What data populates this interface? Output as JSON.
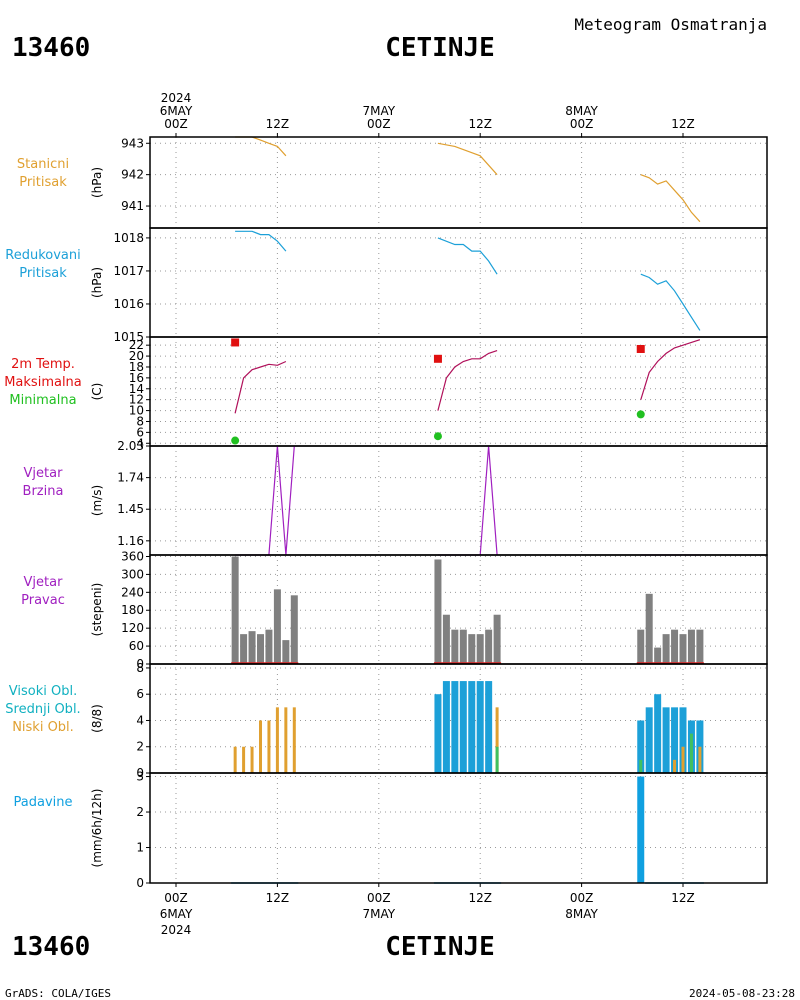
{
  "header": {
    "station_id": "13460",
    "station_name": "CETINJE",
    "title": "Meteogram Osmatranja"
  },
  "footer": {
    "credit": "GrADS: COLA/IGES",
    "timestamp": "2024-05-08-23:28"
  },
  "time_axis": {
    "top_labels": [
      {
        "lines": [
          "2024",
          "6MAY",
          "00Z"
        ]
      },
      {
        "lines": [
          "12Z"
        ]
      },
      {
        "lines": [
          "7MAY",
          "00Z"
        ]
      },
      {
        "lines": [
          "12Z"
        ]
      },
      {
        "lines": [
          "8MAY",
          "00Z"
        ]
      },
      {
        "lines": [
          "12Z"
        ]
      }
    ],
    "bottom_labels": [
      {
        "lines": [
          "00Z",
          "6MAY",
          "2024"
        ]
      },
      {
        "lines": [
          "12Z"
        ]
      },
      {
        "lines": [
          "00Z",
          "7MAY"
        ]
      },
      {
        "lines": [
          "12Z"
        ]
      },
      {
        "lines": [
          "00Z",
          "8MAY"
        ]
      },
      {
        "lines": [
          "12Z"
        ]
      }
    ]
  },
  "colors": {
    "station_pressure": "#e0a030",
    "reduced_pressure": "#1ca0d8",
    "temp": "#b0105a",
    "tmax": "#e01010",
    "tmin": "#20c020",
    "wind_speed": "#a020c0",
    "wind_dir_bar": "#808080",
    "wind_dir_base": "#e02020",
    "high_cloud": "#1ca0d8",
    "mid_cloud": "#40c060",
    "low_cloud": "#e0a030",
    "precip": "#10a0e0",
    "title_pressure": "#e0a030",
    "title_reduced": "#1ca0d8",
    "title_temp": "#e01010",
    "title_max": "#e01010",
    "title_min": "#20c020",
    "title_wind": "#a020c0",
    "title_cloud_high": "#10b0c0",
    "title_cloud_mid": "#10b0c0",
    "title_cloud_low": "#e0a030",
    "title_precip": "#10a0e0"
  },
  "chart_data": [
    {
      "type": "line",
      "panel": "station_pressure",
      "label_lines": [
        "Stanicni",
        "Pritisak"
      ],
      "unit": "(hPa)",
      "ylim": [
        940.3,
        943.2
      ],
      "yticks": [
        941,
        942,
        943
      ],
      "series": [
        {
          "segments": [
            [
              [
                7,
                943.2
              ],
              [
                9,
                943.2
              ],
              [
                10,
                943.1
              ],
              [
                11,
                943.0
              ],
              [
                12,
                942.9
              ],
              [
                13,
                942.6
              ]
            ],
            [
              [
                31,
                943.0
              ],
              [
                33,
                942.9
              ],
              [
                34,
                942.8
              ],
              [
                35,
                942.7
              ],
              [
                36,
                942.6
              ],
              [
                37,
                942.3
              ],
              [
                38,
                942.0
              ]
            ],
            [
              [
                55,
                942.0
              ],
              [
                56,
                941.9
              ],
              [
                57,
                941.7
              ],
              [
                58,
                941.8
              ],
              [
                59,
                941.5
              ],
              [
                60,
                941.2
              ],
              [
                61,
                940.8
              ],
              [
                62,
                940.5
              ]
            ]
          ]
        }
      ]
    },
    {
      "type": "line",
      "panel": "reduced_pressure",
      "label_lines": [
        "Redukovani",
        "Pritisak"
      ],
      "unit": "(hPa)",
      "ylim": [
        1015.0,
        1018.3
      ],
      "yticks": [
        1015,
        1016,
        1017,
        1018
      ],
      "series": [
        {
          "segments": [
            [
              [
                7,
                1018.2
              ],
              [
                9,
                1018.2
              ],
              [
                10,
                1018.1
              ],
              [
                11,
                1018.1
              ],
              [
                12,
                1017.9
              ],
              [
                13,
                1017.6
              ]
            ],
            [
              [
                31,
                1018.0
              ],
              [
                33,
                1017.8
              ],
              [
                34,
                1017.8
              ],
              [
                35,
                1017.6
              ],
              [
                36,
                1017.6
              ],
              [
                37,
                1017.3
              ],
              [
                38,
                1016.9
              ]
            ],
            [
              [
                55,
                1016.9
              ],
              [
                56,
                1016.8
              ],
              [
                57,
                1016.6
              ],
              [
                58,
                1016.7
              ],
              [
                59,
                1016.4
              ],
              [
                60,
                1016.0
              ],
              [
                61,
                1015.6
              ],
              [
                62,
                1015.2
              ]
            ]
          ]
        }
      ]
    },
    {
      "type": "line",
      "panel": "temperature",
      "label_lines": [
        "2m Temp.",
        "Maksimalna",
        "Minimalna"
      ],
      "unit": "(C)",
      "ylim": [
        3.5,
        23.5
      ],
      "yticks": [
        4,
        6,
        8,
        10,
        12,
        14,
        16,
        18,
        20,
        22
      ],
      "series": [
        {
          "segments": [
            [
              [
                7,
                9.5
              ],
              [
                8,
                16.0
              ],
              [
                9,
                17.5
              ],
              [
                10,
                18.0
              ],
              [
                11,
                18.5
              ],
              [
                12,
                18.3
              ],
              [
                13,
                19.0
              ]
            ],
            [
              [
                31,
                10.0
              ],
              [
                32,
                16.0
              ],
              [
                33,
                18.0
              ],
              [
                34,
                19.0
              ],
              [
                35,
                19.5
              ],
              [
                36,
                19.5
              ],
              [
                37,
                20.5
              ],
              [
                38,
                21.0
              ]
            ],
            [
              [
                55,
                12.0
              ],
              [
                56,
                17.0
              ],
              [
                57,
                19.0
              ],
              [
                58,
                20.5
              ],
              [
                59,
                21.5
              ],
              [
                60,
                22.0
              ],
              [
                61,
                22.5
              ],
              [
                62,
                23.0
              ]
            ]
          ]
        }
      ],
      "tmax": [
        [
          7,
          22.5
        ],
        [
          31,
          19.5
        ],
        [
          55,
          21.3
        ]
      ],
      "tmin": [
        [
          7,
          4.5
        ],
        [
          31,
          5.3
        ],
        [
          55,
          9.3
        ]
      ]
    },
    {
      "type": "line",
      "panel": "wind_speed",
      "label_lines": [
        "Vjetar",
        "Brzina"
      ],
      "unit": "(m/s)",
      "ylim": [
        1.03,
        2.03
      ],
      "yticks": [
        1.16,
        1.45,
        1.74,
        2.03
      ],
      "yticklabels": [
        "1.16",
        "1.45",
        "1.74",
        "2.03"
      ],
      "series": [
        {
          "segments": [
            [
              [
                7,
                1.03
              ],
              [
                11,
                1.03
              ],
              [
                12,
                2.03
              ],
              [
                13,
                1.03
              ],
              [
                14,
                2.03
              ]
            ],
            [
              [
                31,
                1.03
              ],
              [
                36,
                1.03
              ],
              [
                37,
                2.03
              ],
              [
                38,
                1.03
              ]
            ],
            [
              [
                55,
                1.03
              ],
              [
                62,
                1.03
              ]
            ]
          ]
        }
      ]
    },
    {
      "type": "bar",
      "panel": "wind_direction",
      "label_lines": [
        "Vjetar",
        "Pravac"
      ],
      "unit": "(stepeni)",
      "ylim": [
        0,
        365
      ],
      "yticks": [
        0,
        60,
        120,
        180,
        240,
        300,
        360
      ],
      "bars": [
        [
          7,
          360
        ],
        [
          8,
          100
        ],
        [
          9,
          110
        ],
        [
          10,
          100
        ],
        [
          11,
          115
        ],
        [
          12,
          250
        ],
        [
          13,
          80
        ],
        [
          14,
          230
        ],
        [
          31,
          350
        ],
        [
          32,
          165
        ],
        [
          33,
          115
        ],
        [
          34,
          115
        ],
        [
          35,
          100
        ],
        [
          36,
          100
        ],
        [
          37,
          115
        ],
        [
          38,
          165
        ],
        [
          55,
          115
        ],
        [
          56,
          235
        ],
        [
          57,
          55
        ],
        [
          58,
          100
        ],
        [
          59,
          115
        ],
        [
          60,
          100
        ],
        [
          61,
          115
        ],
        [
          62,
          115
        ]
      ]
    },
    {
      "type": "bar",
      "panel": "clouds",
      "label_lines": [
        "Visoki Obl.",
        "Srednji Obl.",
        "Niski Obl."
      ],
      "unit": "(8/8)",
      "ylim": [
        0,
        8.3
      ],
      "yticks": [
        0,
        2,
        4,
        6,
        8
      ],
      "high": [
        [
          31,
          6
        ],
        [
          32,
          7
        ],
        [
          33,
          7
        ],
        [
          34,
          7
        ],
        [
          35,
          7
        ],
        [
          36,
          7
        ],
        [
          37,
          7
        ],
        [
          55,
          4
        ],
        [
          56,
          5
        ],
        [
          57,
          6
        ],
        [
          58,
          5
        ],
        [
          59,
          5
        ],
        [
          60,
          5
        ],
        [
          61,
          4
        ],
        [
          62,
          4
        ]
      ],
      "mid": [
        [
          38,
          2
        ],
        [
          55,
          1
        ],
        [
          61,
          3
        ]
      ],
      "low": [
        [
          7,
          2
        ],
        [
          8,
          2
        ],
        [
          9,
          2
        ],
        [
          10,
          4
        ],
        [
          11,
          4
        ],
        [
          12,
          5
        ],
        [
          13,
          5
        ],
        [
          14,
          5
        ],
        [
          38,
          5
        ],
        [
          59,
          1
        ],
        [
          60,
          2
        ],
        [
          61,
          2
        ],
        [
          62,
          2
        ]
      ]
    },
    {
      "type": "bar",
      "panel": "precipitation",
      "label_lines": [
        "Padavine"
      ],
      "unit": "(mm/6h/12h)",
      "ylim": [
        0,
        3.1
      ],
      "yticks": [
        0,
        1,
        2,
        3
      ],
      "bars": [
        [
          55,
          3.0
        ]
      ],
      "trace_ranges": [
        [
          7,
          14
        ],
        [
          31,
          38
        ],
        [
          56,
          62
        ]
      ]
    }
  ]
}
